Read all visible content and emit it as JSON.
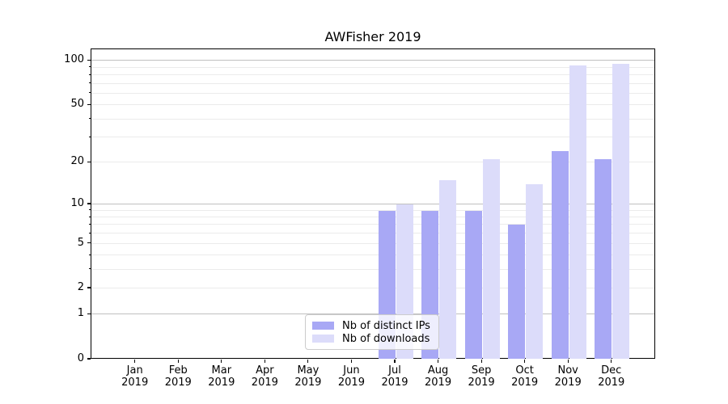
{
  "figure": {
    "title": "AWFisher 2019",
    "background_color": "#ffffff"
  },
  "chart_data": {
    "type": "bar",
    "title": "AWFisher 2019",
    "grid": true,
    "legend_position": "lower center",
    "x_axis": {
      "tick_months": [
        "Jan",
        "Feb",
        "Mar",
        "Apr",
        "May",
        "Jun",
        "Jul",
        "Aug",
        "Sep",
        "Oct",
        "Nov",
        "Dec"
      ],
      "tick_year": "2019"
    },
    "categories": [
      "Jan 2019",
      "Feb 2019",
      "Mar 2019",
      "Apr 2019",
      "May 2019",
      "Jun 2019",
      "Jul 2019",
      "Aug 2019",
      "Sep 2019",
      "Oct 2019",
      "Nov 2019",
      "Dec 2019"
    ],
    "series": [
      {
        "name": "Nb of distinct IPs",
        "color": "#a8a8f5",
        "values": [
          0,
          0,
          0,
          0,
          0,
          0,
          9,
          9,
          9,
          7,
          24,
          21
        ]
      },
      {
        "name": "Nb of downloads",
        "color": "#dcdcfa",
        "values": [
          0,
          0,
          0,
          0,
          0,
          0,
          10,
          15,
          21,
          14,
          93,
          96
        ]
      }
    ],
    "y_axis": {
      "scale": "log10(value+1)",
      "tick_values": [
        0,
        1,
        2,
        5,
        10,
        20,
        50,
        100
      ],
      "max_effective": 120,
      "grid_major_values": [
        1,
        10,
        100
      ],
      "grid_minor_values": [
        2,
        3,
        4,
        5,
        6,
        7,
        8,
        9,
        20,
        30,
        40,
        50,
        60,
        70,
        80,
        90
      ]
    }
  },
  "legend": {
    "items": [
      {
        "label": "Nb of distinct IPs",
        "color": "#a8a8f5"
      },
      {
        "label": "Nb of downloads",
        "color": "#dcdcfa"
      }
    ]
  },
  "colors": {
    "bar_dark": "#a8a8f5",
    "bar_light": "#dcdcfa",
    "grid_major": "#c0c0c0",
    "grid_minor": "#ebebeb",
    "axis": "#000000",
    "text": "#000000",
    "legend_border": "#cccccc"
  }
}
